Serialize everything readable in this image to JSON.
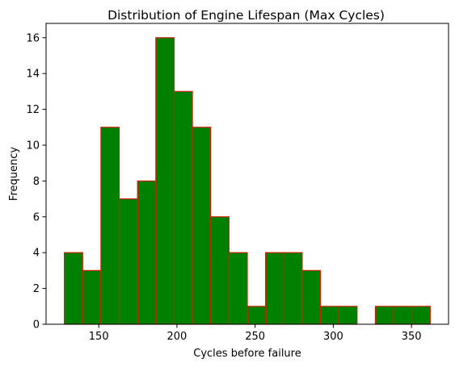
{
  "chart_data": {
    "type": "bar",
    "title": "Distribution of Engine Lifespan (Max Cycles)",
    "xlabel": "Cycles before failure",
    "ylabel": "Frequency",
    "bin_start": 128,
    "bin_width": 11.7,
    "bins": [
      {
        "x0": 128.0,
        "x1": 139.7,
        "count": 4
      },
      {
        "x0": 139.7,
        "x1": 151.4,
        "count": 3
      },
      {
        "x0": 151.4,
        "x1": 163.1,
        "count": 11
      },
      {
        "x0": 163.1,
        "x1": 174.8,
        "count": 7
      },
      {
        "x0": 174.8,
        "x1": 186.5,
        "count": 8
      },
      {
        "x0": 186.5,
        "x1": 198.2,
        "count": 16
      },
      {
        "x0": 198.2,
        "x1": 209.9,
        "count": 13
      },
      {
        "x0": 209.9,
        "x1": 221.6,
        "count": 11
      },
      {
        "x0": 221.6,
        "x1": 233.3,
        "count": 6
      },
      {
        "x0": 233.3,
        "x1": 245.0,
        "count": 4
      },
      {
        "x0": 245.0,
        "x1": 256.7,
        "count": 1
      },
      {
        "x0": 256.7,
        "x1": 268.4,
        "count": 4
      },
      {
        "x0": 268.4,
        "x1": 280.1,
        "count": 4
      },
      {
        "x0": 280.1,
        "x1": 291.8,
        "count": 3
      },
      {
        "x0": 291.8,
        "x1": 303.5,
        "count": 1
      },
      {
        "x0": 303.5,
        "x1": 315.2,
        "count": 1
      },
      {
        "x0": 315.2,
        "x1": 326.9,
        "count": 0
      },
      {
        "x0": 326.9,
        "x1": 338.6,
        "count": 1
      },
      {
        "x0": 338.6,
        "x1": 350.3,
        "count": 1
      },
      {
        "x0": 350.3,
        "x1": 362.0,
        "count": 1
      }
    ],
    "xlim": [
      116.3,
      373.7
    ],
    "ylim": [
      0,
      16.8
    ],
    "xticks": [
      150,
      200,
      250,
      300,
      350
    ],
    "yticks": [
      0,
      2,
      4,
      6,
      8,
      10,
      12,
      14,
      16
    ],
    "grid": false,
    "colors": {
      "bar_fill": "#008000",
      "bar_edge": "#cc2200"
    }
  }
}
